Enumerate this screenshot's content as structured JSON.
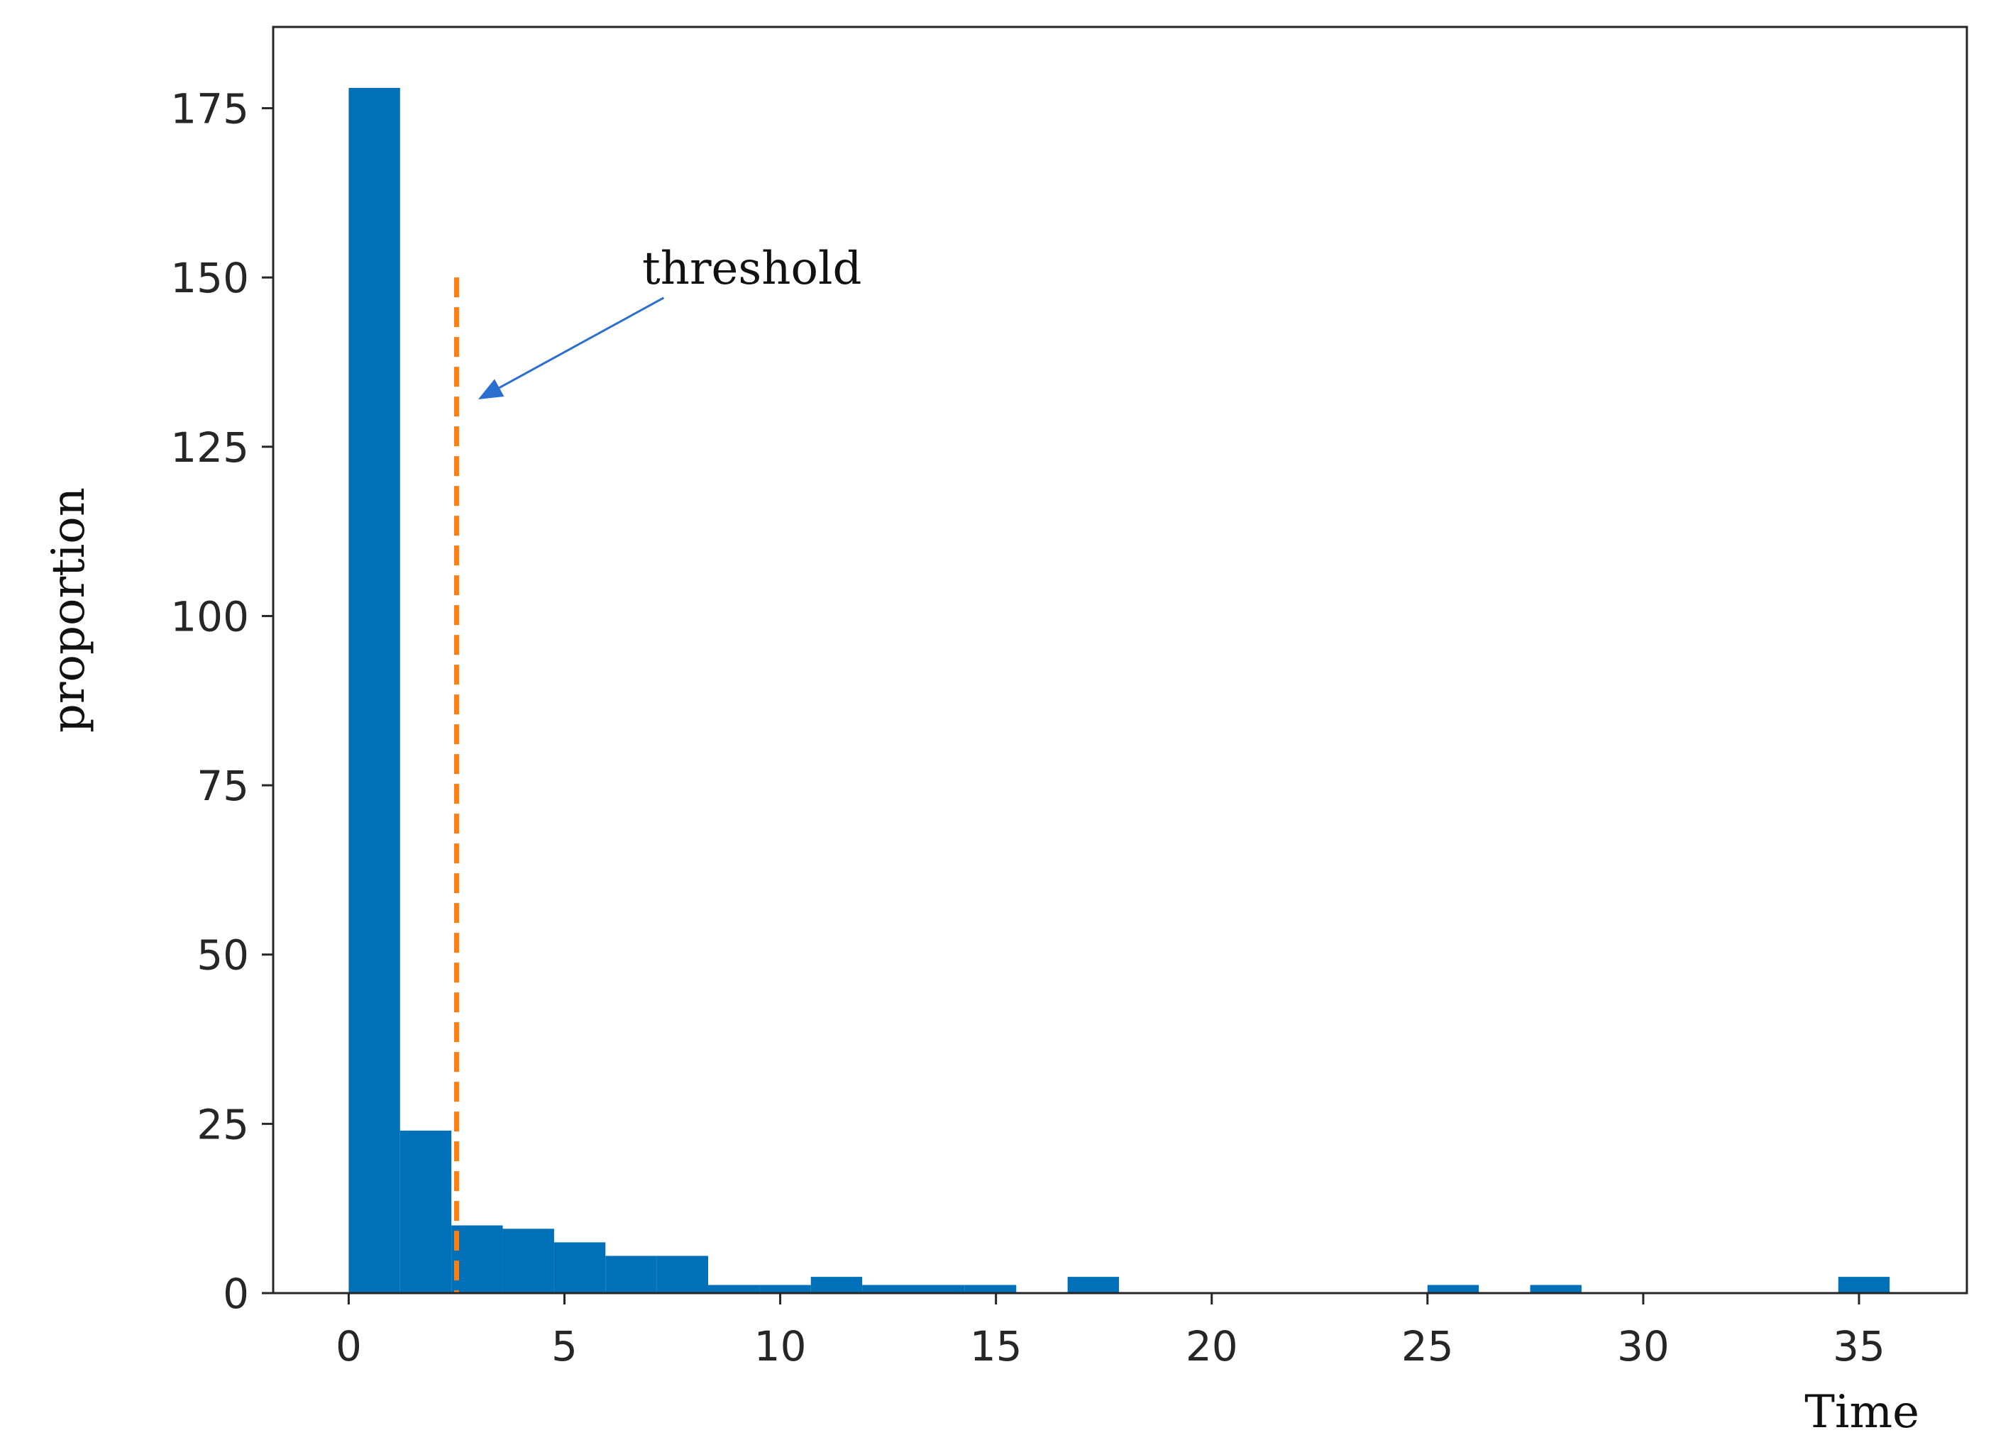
{
  "chart_data": {
    "type": "bar",
    "subtype": "histogram",
    "xlabel": "Time",
    "ylabel": "proportion",
    "xlim": [
      -1.75,
      37.5
    ],
    "ylim": [
      0,
      187
    ],
    "xticks": [
      0,
      5,
      10,
      15,
      20,
      25,
      30,
      35
    ],
    "yticks": [
      0,
      25,
      50,
      75,
      100,
      125,
      150,
      175
    ],
    "grid": false,
    "bar_color": "#0071b8",
    "bins": [
      {
        "x0": 0.0,
        "x1": 1.19,
        "value": 178
      },
      {
        "x0": 1.19,
        "x1": 2.38,
        "value": 24
      },
      {
        "x0": 2.38,
        "x1": 3.57,
        "value": 10
      },
      {
        "x0": 3.57,
        "x1": 4.76,
        "value": 9.5
      },
      {
        "x0": 4.76,
        "x1": 5.95,
        "value": 7.5
      },
      {
        "x0": 5.95,
        "x1": 7.14,
        "value": 5.5
      },
      {
        "x0": 7.14,
        "x1": 8.33,
        "value": 5.5
      },
      {
        "x0": 8.33,
        "x1": 9.52,
        "value": 1.2
      },
      {
        "x0": 9.52,
        "x1": 10.71,
        "value": 1.2
      },
      {
        "x0": 10.71,
        "x1": 11.9,
        "value": 2.4
      },
      {
        "x0": 11.9,
        "x1": 13.09,
        "value": 1.2
      },
      {
        "x0": 13.09,
        "x1": 14.28,
        "value": 1.2
      },
      {
        "x0": 14.28,
        "x1": 15.47,
        "value": 1.2
      },
      {
        "x0": 16.66,
        "x1": 17.85,
        "value": 2.4
      },
      {
        "x0": 25.0,
        "x1": 26.19,
        "value": 1.2
      },
      {
        "x0": 27.38,
        "x1": 28.57,
        "value": 1.2
      },
      {
        "x0": 34.52,
        "x1": 35.71,
        "value": 2.4
      }
    ],
    "threshold": {
      "x": 2.5,
      "y_range": [
        0,
        150
      ],
      "color": "#ff7f0e",
      "style": "dashed"
    },
    "annotation": {
      "text": "threshold",
      "arrow_color": "#2a6fd0",
      "arrow_from": [
        7.3,
        147
      ],
      "arrow_to": [
        3.0,
        132
      ]
    }
  }
}
